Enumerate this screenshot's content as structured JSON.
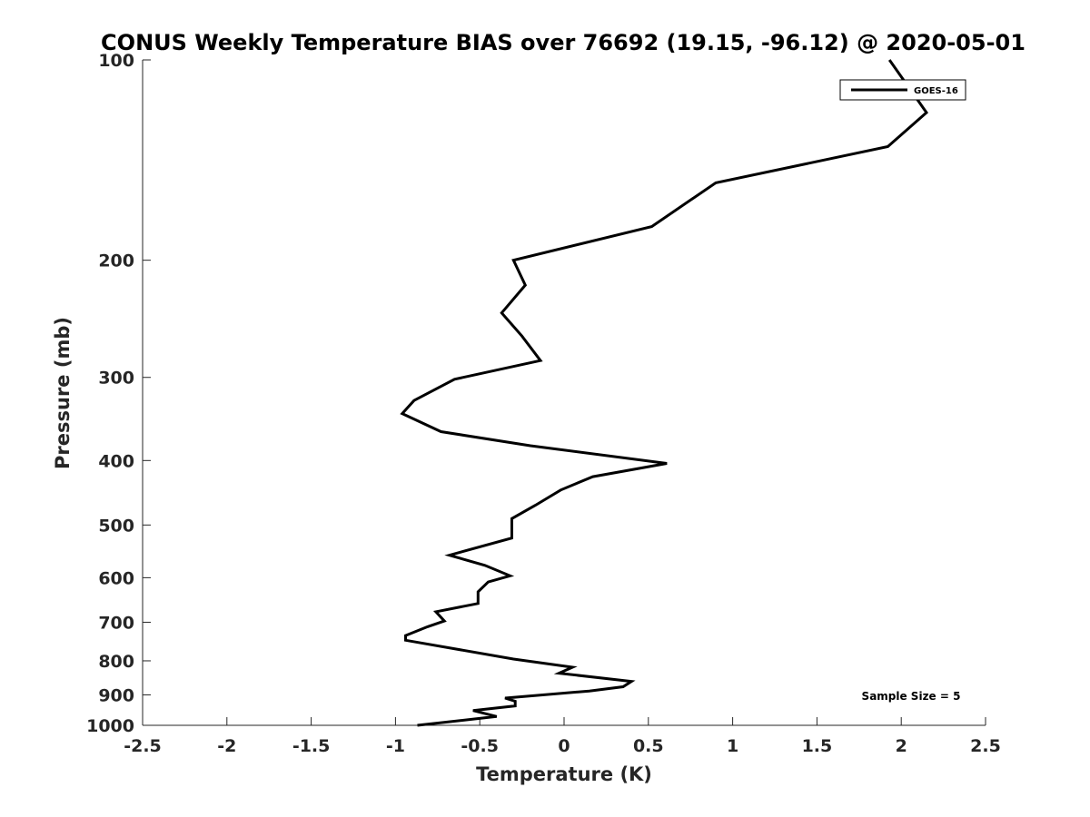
{
  "chart_data": {
    "type": "line",
    "title": "CONUS Weekly Temperature BIAS over 76692 (19.15, -96.12) @ 2020-05-01",
    "xlabel": "Temperature (K)",
    "ylabel": "Pressure (mb)",
    "xlim": [
      -2.5,
      2.5
    ],
    "ylim": [
      1000,
      100
    ],
    "yscale": "log",
    "y_reversed": true,
    "grid": false,
    "xticks": [
      "-2.5",
      "-2",
      "-1.5",
      "-1",
      "-0.5",
      "0",
      "0.5",
      "1",
      "1.5",
      "2",
      "2.5"
    ],
    "yticks": [
      "100",
      "200",
      "300",
      "400",
      "500",
      "600",
      "700",
      "800",
      "900",
      "1000"
    ],
    "legend": {
      "position": "top-right",
      "entries": [
        "GOES-16"
      ]
    },
    "annotation": "Sample Size = 5",
    "series": [
      {
        "name": "GOES-16",
        "color": "#000000",
        "points": [
          {
            "x": 1.93,
            "y": 100
          },
          {
            "x": 2.15,
            "y": 120
          },
          {
            "x": 1.92,
            "y": 135
          },
          {
            "x": 0.9,
            "y": 153
          },
          {
            "x": 0.52,
            "y": 178
          },
          {
            "x": -0.3,
            "y": 200
          },
          {
            "x": -0.23,
            "y": 218
          },
          {
            "x": -0.37,
            "y": 240
          },
          {
            "x": -0.25,
            "y": 260
          },
          {
            "x": -0.14,
            "y": 283
          },
          {
            "x": -0.65,
            "y": 302
          },
          {
            "x": -0.89,
            "y": 325
          },
          {
            "x": -0.96,
            "y": 340
          },
          {
            "x": -0.73,
            "y": 362
          },
          {
            "x": -0.2,
            "y": 380
          },
          {
            "x": 0.61,
            "y": 404
          },
          {
            "x": 0.17,
            "y": 423
          },
          {
            "x": -0.02,
            "y": 443
          },
          {
            "x": -0.17,
            "y": 467
          },
          {
            "x": -0.31,
            "y": 489
          },
          {
            "x": -0.31,
            "y": 500
          },
          {
            "x": -0.31,
            "y": 523
          },
          {
            "x": -0.68,
            "y": 555
          },
          {
            "x": -0.47,
            "y": 575
          },
          {
            "x": -0.32,
            "y": 596
          },
          {
            "x": -0.45,
            "y": 609
          },
          {
            "x": -0.51,
            "y": 630
          },
          {
            "x": -0.51,
            "y": 656
          },
          {
            "x": -0.76,
            "y": 675
          },
          {
            "x": -0.71,
            "y": 697
          },
          {
            "x": -0.81,
            "y": 711
          },
          {
            "x": -0.94,
            "y": 733
          },
          {
            "x": -0.94,
            "y": 745
          },
          {
            "x": -0.3,
            "y": 795
          },
          {
            "x": 0.05,
            "y": 818
          },
          {
            "x": -0.03,
            "y": 835
          },
          {
            "x": 0.4,
            "y": 859
          },
          {
            "x": 0.35,
            "y": 875
          },
          {
            "x": 0.15,
            "y": 888
          },
          {
            "x": -0.35,
            "y": 910
          },
          {
            "x": -0.29,
            "y": 920
          },
          {
            "x": -0.29,
            "y": 935
          },
          {
            "x": -0.54,
            "y": 950
          },
          {
            "x": -0.4,
            "y": 970
          },
          {
            "x": -0.87,
            "y": 1000
          }
        ]
      }
    ]
  }
}
